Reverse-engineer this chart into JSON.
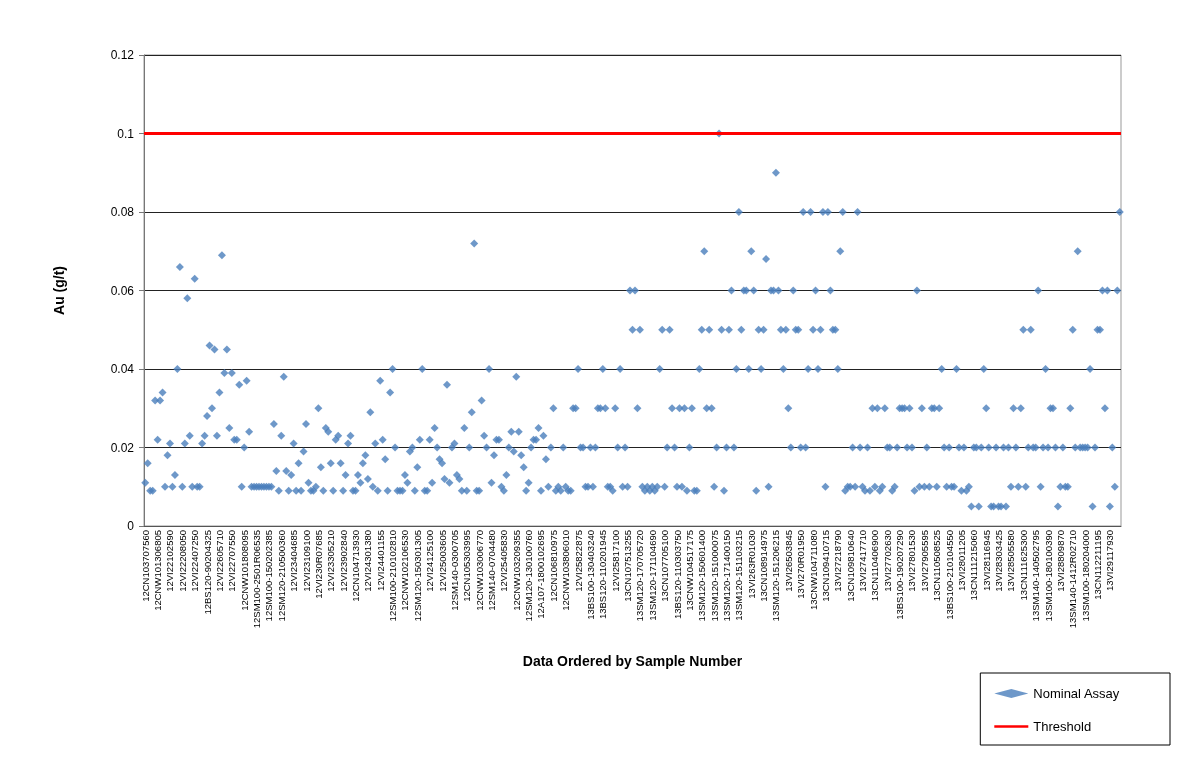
{
  "chart_data": {
    "type": "scatter",
    "xlabel": "Data Ordered by Sample Number",
    "ylabel": "Au (g/t)",
    "categories": [
      "12CN103707560",
      null,
      null,
      null,
      null,
      "12CNW101306805",
      null,
      null,
      null,
      null,
      "12VI22102590",
      null,
      null,
      null,
      null,
      "12VI22208050",
      null,
      null,
      null,
      null,
      "12VI22407250",
      null,
      null,
      null,
      null,
      "12BS120-90204325",
      null,
      null,
      null,
      null,
      "12VI22605710",
      null,
      null,
      null,
      null,
      "12VI22707550",
      null,
      null,
      null,
      null,
      "12CNW101808095",
      null,
      null,
      null,
      null,
      "12SM100-2501R06535",
      null,
      null,
      null,
      null,
      "12SM100-150202385",
      null,
      null,
      null,
      null,
      "12SM120-210500360",
      null,
      null,
      null,
      null,
      "12VI23404685",
      null,
      null,
      null,
      null,
      "12VI23109100",
      null,
      null,
      null,
      null,
      "12VI230R07685",
      null,
      null,
      null,
      null,
      "12VI23305210",
      null,
      null,
      null,
      null,
      "12VI23902840",
      null,
      null,
      null,
      null,
      "12CN104713930",
      null,
      null,
      null,
      null,
      "12VI24301380",
      null,
      null,
      null,
      null,
      "12VI24401155",
      null,
      null,
      null,
      null,
      "12SM100-210102810",
      null,
      null,
      null,
      null,
      "12CNW102106530",
      null,
      null,
      null,
      null,
      "12SM120-150301305",
      null,
      null,
      null,
      null,
      "12VI24125100",
      null,
      null,
      null,
      null,
      "12VI25003605",
      null,
      null,
      null,
      null,
      "12SM140-0300705",
      null,
      null,
      null,
      null,
      "12CN105303995",
      null,
      null,
      null,
      null,
      "12CNW103006770",
      null,
      null,
      null,
      null,
      "12SM140-0704480",
      null,
      null,
      null,
      null,
      "12VI25405830",
      null,
      null,
      null,
      null,
      "12CNW103209355",
      null,
      null,
      null,
      null,
      "12SM120-130100760",
      null,
      null,
      null,
      null,
      "12A107-1800102695",
      null,
      null,
      null,
      null,
      "12CN106810975",
      null,
      null,
      null,
      null,
      "12CNW103806010",
      null,
      null,
      null,
      null,
      "12VI25822875",
      null,
      null,
      null,
      null,
      "13BS100-130403240",
      null,
      null,
      null,
      null,
      "13BS120-110201945",
      null,
      null,
      null,
      null,
      "12VI25817100",
      null,
      null,
      null,
      null,
      "13CN107513255",
      null,
      null,
      null,
      null,
      "13SM120-170705720",
      null,
      null,
      null,
      null,
      "13SM120-171104690",
      null,
      null,
      null,
      null,
      "13CN107705100",
      null,
      null,
      null,
      null,
      "13BS120-110303750",
      null,
      null,
      null,
      null,
      "13CNW104517175",
      null,
      null,
      null,
      null,
      "13SM120-150601400",
      null,
      null,
      null,
      null,
      "13SM120-151000075",
      null,
      null,
      null,
      null,
      "13SM120-171400150",
      null,
      null,
      null,
      null,
      "13SM120-151103215",
      null,
      null,
      null,
      null,
      "13VI263R01030",
      null,
      null,
      null,
      null,
      "13CN108914975",
      null,
      null,
      null,
      null,
      "13SM120-151206215",
      null,
      null,
      null,
      null,
      "13VI26503845",
      null,
      null,
      null,
      null,
      "13VI270R01950",
      null,
      null,
      null,
      null,
      "13CNW104711080",
      null,
      null,
      null,
      null,
      "13CN109410715",
      null,
      null,
      null,
      null,
      "13VI27218790",
      null,
      null,
      null,
      null,
      "13CN109810640",
      null,
      null,
      null,
      null,
      "13VI27417710",
      null,
      null,
      null,
      null,
      "13CN110406900",
      null,
      null,
      null,
      null,
      "13VI27702630",
      null,
      null,
      null,
      null,
      "13BS100-190207290",
      null,
      null,
      null,
      null,
      "13VI27801530",
      null,
      null,
      null,
      null,
      "13VI27905595",
      null,
      null,
      null,
      null,
      "13CN110508525",
      null,
      null,
      null,
      null,
      "13BS100-210104550",
      null,
      null,
      null,
      null,
      "13VI28011205",
      null,
      null,
      null,
      null,
      "13CN111215060",
      null,
      null,
      null,
      null,
      "13VI28116945",
      null,
      null,
      null,
      null,
      "13VI28303425",
      null,
      null,
      null,
      null,
      "13VI28505580",
      null,
      null,
      null,
      null,
      "13CN111625300",
      null,
      null,
      null,
      null,
      "13SM140-140502795",
      null,
      null,
      null,
      null,
      "13SM100-180100390",
      null,
      null,
      null,
      null,
      "13VI28809870",
      null,
      null,
      null,
      null,
      "13SM140-1412R02710",
      null,
      null,
      null,
      null,
      "13SM100-180204000",
      null,
      null,
      null,
      null,
      "13CN112211195",
      null,
      null,
      null,
      null,
      "13VI29117930",
      null,
      null,
      null,
      null
    ],
    "series": [
      {
        "name": "Nominal Assay",
        "color": "#4a7ebb",
        "values": [
          0.011,
          0.016,
          0.009,
          0.009,
          0.032,
          0.022,
          0.032,
          0.034,
          0.01,
          0.018,
          0.021,
          0.01,
          0.013,
          0.04,
          0.066,
          0.01,
          0.021,
          0.058,
          0.023,
          0.01,
          0.063,
          0.01,
          0.01,
          0.021,
          0.023,
          0.028,
          0.046,
          0.03,
          0.045,
          0.023,
          0.034,
          0.069,
          0.039,
          0.045,
          0.025,
          0.039,
          0.022,
          0.022,
          0.036,
          0.01,
          0.02,
          0.037,
          0.024,
          0.01,
          0.01,
          0.01,
          0.01,
          0.01,
          0.01,
          0.01,
          0.01,
          0.01,
          0.026,
          0.014,
          0.009,
          0.023,
          0.038,
          0.014,
          0.009,
          0.013,
          0.021,
          0.009,
          0.016,
          0.009,
          0.019,
          0.026,
          0.011,
          0.009,
          0.009,
          0.01,
          0.03,
          0.015,
          0.009,
          0.025,
          0.024,
          0.016,
          0.009,
          0.022,
          0.023,
          0.016,
          0.009,
          0.013,
          0.021,
          0.023,
          0.009,
          0.009,
          0.013,
          0.011,
          0.016,
          0.018,
          0.012,
          0.029,
          0.01,
          0.021,
          0.009,
          0.037,
          0.022,
          0.017,
          0.009,
          0.034,
          0.04,
          0.02,
          0.009,
          0.009,
          0.009,
          0.013,
          0.011,
          0.019,
          0.02,
          0.009,
          0.015,
          0.022,
          0.04,
          0.009,
          0.009,
          0.022,
          0.011,
          0.025,
          0.02,
          0.017,
          0.016,
          0.012,
          0.036,
          0.011,
          0.02,
          0.021,
          0.013,
          0.012,
          0.009,
          0.025,
          0.009,
          0.02,
          0.029,
          0.072,
          0.009,
          0.009,
          0.032,
          0.023,
          0.02,
          0.04,
          0.011,
          0.018,
          0.022,
          0.022,
          0.01,
          0.009,
          0.013,
          0.02,
          0.024,
          0.019,
          0.038,
          0.024,
          0.018,
          0.015,
          0.009,
          0.011,
          0.02,
          0.022,
          0.022,
          0.025,
          0.009,
          0.023,
          0.017,
          0.01,
          0.02,
          0.03,
          0.009,
          0.01,
          0.009,
          0.02,
          0.01,
          0.009,
          0.009,
          0.03,
          0.03,
          0.04,
          0.02,
          0.02,
          0.01,
          0.01,
          0.02,
          0.01,
          0.02,
          0.03,
          0.03,
          0.04,
          0.03,
          0.01,
          0.01,
          0.009,
          0.03,
          0.02,
          0.04,
          0.01,
          0.02,
          0.01,
          0.06,
          0.05,
          0.06,
          0.03,
          0.05,
          0.01,
          0.009,
          0.01,
          0.009,
          0.01,
          0.009,
          0.01,
          0.04,
          0.05,
          0.01,
          0.02,
          0.05,
          0.03,
          0.02,
          0.01,
          0.03,
          0.01,
          0.03,
          0.009,
          0.02,
          0.03,
          0.009,
          0.009,
          0.04,
          0.05,
          0.07,
          0.03,
          0.05,
          0.03,
          0.01,
          0.02,
          0.1,
          0.05,
          0.009,
          0.02,
          0.05,
          0.06,
          0.02,
          0.04,
          0.08,
          0.05,
          0.06,
          0.06,
          0.04,
          0.07,
          0.06,
          0.009,
          0.05,
          0.04,
          0.05,
          0.068,
          0.01,
          0.06,
          0.06,
          0.09,
          0.06,
          0.05,
          0.04,
          0.05,
          0.03,
          0.02,
          0.06,
          0.05,
          0.05,
          0.02,
          0.08,
          0.02,
          0.04,
          0.08,
          0.05,
          0.06,
          0.04,
          0.05,
          0.08,
          0.01,
          0.08,
          0.06,
          0.05,
          0.05,
          0.04,
          0.07,
          0.08,
          0.009,
          0.01,
          0.01,
          0.02,
          0.01,
          0.08,
          0.02,
          0.01,
          0.009,
          0.02,
          0.009,
          0.03,
          0.01,
          0.03,
          0.009,
          0.01,
          0.03,
          0.02,
          0.02,
          0.009,
          0.01,
          0.02,
          0.03,
          0.03,
          0.03,
          0.02,
          0.03,
          0.02,
          0.009,
          0.06,
          0.01,
          0.03,
          0.01,
          0.02,
          0.01,
          0.03,
          0.03,
          0.01,
          0.03,
          0.04,
          0.02,
          0.01,
          0.02,
          0.01,
          0.01,
          0.04,
          0.02,
          0.009,
          0.02,
          0.009,
          0.01,
          0.005,
          0.02,
          0.02,
          0.005,
          0.02,
          0.04,
          0.03,
          0.02,
          0.005,
          0.005,
          0.02,
          0.005,
          0.005,
          0.02,
          0.005,
          0.02,
          0.01,
          0.03,
          0.02,
          0.01,
          0.03,
          0.05,
          0.01,
          0.02,
          0.05,
          0.02,
          0.02,
          0.06,
          0.01,
          0.02,
          0.04,
          0.02,
          0.03,
          0.03,
          0.02,
          0.005,
          0.01,
          0.02,
          0.01,
          0.01,
          0.03,
          0.05,
          0.02,
          0.07,
          0.02,
          0.02,
          0.02,
          0.02,
          0.04,
          0.005,
          0.02,
          0.05,
          0.05,
          0.06,
          0.03,
          0.06,
          0.005,
          0.02,
          0.01,
          0.06,
          0.08
        ]
      }
    ],
    "ylim": [
      0,
      0.12
    ],
    "yticks": [
      0,
      0.02,
      0.04,
      0.06,
      0.08,
      0.1,
      0.12
    ],
    "grid": "y",
    "marker": "diamond",
    "legend": "bottom right",
    "ref_lines": [
      {
        "axis": "y",
        "value": 0.1,
        "label": "Threshold",
        "color": "#ff0000",
        "line_style": "solid"
      }
    ]
  }
}
